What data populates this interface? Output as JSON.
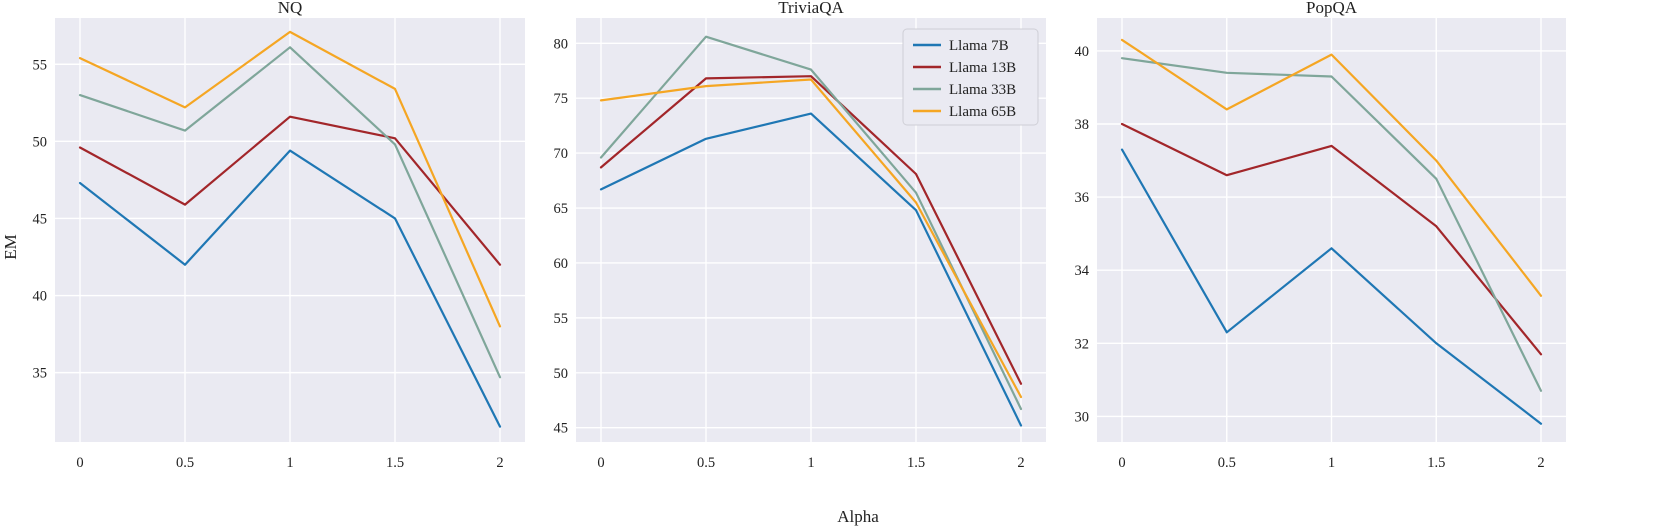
{
  "chart_data": [
    {
      "type": "line",
      "title": "NQ",
      "xlabel": "",
      "ylabel": "EM",
      "x": [
        0,
        0.5,
        1,
        1.5,
        2
      ],
      "xticklabels": [
        "0",
        "0.5",
        "1",
        "1.5",
        "2"
      ],
      "yticks": [
        35,
        40,
        45,
        50,
        55
      ],
      "ylim": [
        30.5,
        58
      ],
      "legend": false,
      "series": [
        {
          "name": "Llama 7B",
          "color": "#1f77b4",
          "values": [
            47.3,
            42.0,
            49.4,
            45.0,
            31.5
          ]
        },
        {
          "name": "Llama 13B",
          "color": "#a2262a",
          "values": [
            49.6,
            45.9,
            51.6,
            50.2,
            42.0
          ]
        },
        {
          "name": "Llama 33B",
          "color": "#7fa69a",
          "values": [
            53.0,
            50.7,
            56.1,
            49.8,
            34.7
          ]
        },
        {
          "name": "Llama 65B",
          "color": "#f5a623",
          "values": [
            55.4,
            52.2,
            57.1,
            53.4,
            38.0
          ]
        }
      ]
    },
    {
      "type": "line",
      "title": "TriviaQA",
      "xlabel": "Alpha",
      "ylabel": "",
      "x": [
        0,
        0.5,
        1,
        1.5,
        2
      ],
      "xticklabels": [
        "0",
        "0.5",
        "1",
        "1.5",
        "2"
      ],
      "yticks": [
        45,
        50,
        55,
        60,
        65,
        70,
        75,
        80
      ],
      "ylim": [
        43.7,
        82.3
      ],
      "legend": true,
      "legend_loc": "upper right",
      "series": [
        {
          "name": "Llama 7B",
          "color": "#1f77b4",
          "values": [
            66.7,
            71.3,
            73.6,
            64.8,
            45.2
          ]
        },
        {
          "name": "Llama 13B",
          "color": "#a2262a",
          "values": [
            68.7,
            76.8,
            77.0,
            68.1,
            49.0
          ]
        },
        {
          "name": "Llama 33B",
          "color": "#7fa69a",
          "values": [
            69.6,
            80.6,
            77.6,
            66.4,
            46.7
          ]
        },
        {
          "name": "Llama 65B",
          "color": "#f5a623",
          "values": [
            74.8,
            76.1,
            76.7,
            65.5,
            47.8
          ]
        }
      ]
    },
    {
      "type": "line",
      "title": "PopQA",
      "xlabel": "",
      "ylabel": "",
      "x": [
        0,
        0.5,
        1,
        1.5,
        2
      ],
      "xticklabels": [
        "0",
        "0.5",
        "1",
        "1.5",
        "2"
      ],
      "yticks": [
        30,
        32,
        34,
        36,
        38,
        40
      ],
      "ylim": [
        29.3,
        40.9
      ],
      "legend": false,
      "series": [
        {
          "name": "Llama 7B",
          "color": "#1f77b4",
          "values": [
            37.3,
            32.3,
            34.6,
            32.0,
            29.8
          ]
        },
        {
          "name": "Llama 13B",
          "color": "#a2262a",
          "values": [
            38.0,
            36.6,
            37.4,
            35.2,
            31.7
          ]
        },
        {
          "name": "Llama 33B",
          "color": "#7fa69a",
          "values": [
            39.8,
            39.4,
            39.3,
            36.5,
            30.7
          ]
        },
        {
          "name": "Llama 65B",
          "color": "#f5a623",
          "values": [
            40.3,
            38.4,
            39.9,
            37.0,
            33.3
          ]
        }
      ]
    }
  ]
}
